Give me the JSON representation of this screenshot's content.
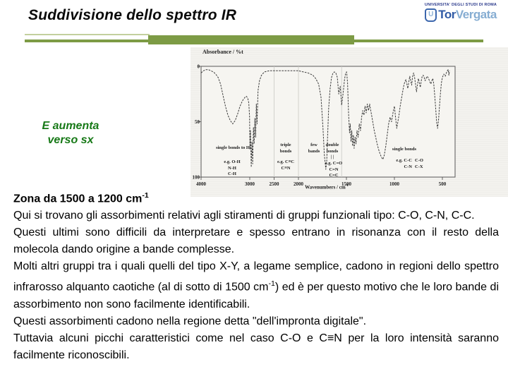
{
  "slide": {
    "title": "Suddivisione dello spettro IR"
  },
  "logo": {
    "university_line": "UNIVERSITA' DEGLI STUDI DI ROMA",
    "u_glyph": "U",
    "name_tor": "Tor",
    "name_vergata": "Vergata"
  },
  "note": {
    "line1": "E aumenta",
    "line2": "verso sx",
    "color": "#177917"
  },
  "colors": {
    "divider_olive": "#7d9b45",
    "divider_light_olive": "#c3d09e",
    "note_green": "#177917",
    "logo_navy": "#2b3a8c",
    "logo_blue": "#2f5aa5",
    "logo_light_blue": "#86add2",
    "chart_scan_background": "#f3f2ee"
  },
  "chart_data": {
    "type": "line",
    "ylabel": "Absorbance / %t",
    "xlabel": "Wavenumbers / cm",
    "xlabel_sup": "-1",
    "x_ticks": [
      4000,
      3000,
      2500,
      2000,
      1500,
      1000,
      500
    ],
    "y_ticks": [
      0,
      50,
      100
    ],
    "ylim": [
      0,
      100
    ],
    "axis_note": "x axis runs 4000 to 500 cm-1 left to right; scale expands 2x below 2000; y is 0 (top) to 100 (bottom); grid off except 3 light zone boundary lines",
    "zone_boundaries": [
      2500,
      2000,
      1550
    ],
    "zones": [
      {
        "lines": [
          "single bonds to H"
        ],
        "eg": [
          "e.g. O-H",
          "N-H",
          "C-H"
        ]
      },
      {
        "lines": [
          "triple",
          "bonds"
        ],
        "eg": [
          "e.g. C≡C",
          "C≡N"
        ]
      },
      {
        "lines": [
          "few",
          "bands"
        ],
        "eg": []
      },
      {
        "lines": [
          "double",
          "bonds",
          "| |"
        ],
        "eg": [
          "e.g. C=O",
          "C=N",
          "C=C"
        ]
      },
      {
        "lines": [
          "single bonds"
        ],
        "eg_col1": [
          "e.g. C-C",
          "C-N"
        ],
        "eg_col2": [
          "C-O",
          "C-X"
        ]
      }
    ],
    "series": [
      {
        "name": "IR transmittance-style trace (dashed scan)",
        "points": [
          [
            4000,
            6
          ],
          [
            3950,
            4
          ],
          [
            3900,
            3
          ],
          [
            3850,
            3
          ],
          [
            3800,
            4
          ],
          [
            3750,
            5
          ],
          [
            3700,
            7
          ],
          [
            3650,
            10
          ],
          [
            3600,
            16
          ],
          [
            3550,
            26
          ],
          [
            3500,
            36
          ],
          [
            3450,
            44
          ],
          [
            3400,
            49
          ],
          [
            3350,
            52
          ],
          [
            3300,
            49
          ],
          [
            3250,
            43
          ],
          [
            3200,
            36
          ],
          [
            3150,
            31
          ],
          [
            3100,
            28
          ],
          [
            3070,
            27
          ],
          [
            3040,
            29
          ],
          [
            3020,
            33
          ],
          [
            3005,
            45
          ],
          [
            2995,
            75
          ],
          [
            2985,
            58
          ],
          [
            2970,
            91
          ],
          [
            2955,
            68
          ],
          [
            2940,
            88
          ],
          [
            2925,
            55
          ],
          [
            2910,
            70
          ],
          [
            2895,
            47
          ],
          [
            2880,
            64
          ],
          [
            2865,
            34
          ],
          [
            2850,
            52
          ],
          [
            2830,
            22
          ],
          [
            2800,
            13
          ],
          [
            2760,
            8
          ],
          [
            2700,
            5
          ],
          [
            2600,
            4
          ],
          [
            2500,
            4
          ],
          [
            2400,
            4
          ],
          [
            2300,
            4
          ],
          [
            2200,
            4
          ],
          [
            2100,
            4
          ],
          [
            2000,
            4
          ],
          [
            1950,
            5
          ],
          [
            1900,
            6
          ],
          [
            1850,
            8
          ],
          [
            1820,
            11
          ],
          [
            1790,
            16
          ],
          [
            1765,
            28
          ],
          [
            1745,
            55
          ],
          [
            1730,
            80
          ],
          [
            1715,
            93
          ],
          [
            1705,
            85
          ],
          [
            1695,
            60
          ],
          [
            1685,
            38
          ],
          [
            1670,
            20
          ],
          [
            1655,
            10
          ],
          [
            1640,
            6
          ],
          [
            1625,
            5
          ],
          [
            1610,
            6
          ],
          [
            1595,
            10
          ],
          [
            1580,
            25
          ],
          [
            1565,
            18
          ],
          [
            1550,
            35
          ],
          [
            1535,
            25
          ],
          [
            1520,
            12
          ],
          [
            1508,
            6
          ],
          [
            1498,
            5
          ],
          [
            1488,
            15
          ],
          [
            1478,
            42
          ],
          [
            1468,
            60
          ],
          [
            1460,
            52
          ],
          [
            1452,
            68
          ],
          [
            1444,
            58
          ],
          [
            1436,
            72
          ],
          [
            1428,
            62
          ],
          [
            1420,
            74
          ],
          [
            1410,
            64
          ],
          [
            1400,
            70
          ],
          [
            1390,
            58
          ],
          [
            1378,
            64
          ],
          [
            1366,
            52
          ],
          [
            1354,
            58
          ],
          [
            1342,
            46
          ],
          [
            1330,
            40
          ],
          [
            1318,
            44
          ],
          [
            1306,
            36
          ],
          [
            1294,
            42
          ],
          [
            1282,
            34
          ],
          [
            1270,
            40
          ],
          [
            1258,
            34
          ],
          [
            1246,
            40
          ],
          [
            1234,
            46
          ],
          [
            1222,
            52
          ],
          [
            1210,
            58
          ],
          [
            1195,
            64
          ],
          [
            1180,
            70
          ],
          [
            1165,
            75
          ],
          [
            1150,
            79
          ],
          [
            1135,
            82
          ],
          [
            1120,
            84
          ],
          [
            1105,
            80
          ],
          [
            1090,
            72
          ],
          [
            1075,
            62
          ],
          [
            1060,
            52
          ],
          [
            1045,
            46
          ],
          [
            1030,
            50
          ],
          [
            1015,
            42
          ],
          [
            1000,
            36
          ],
          [
            988,
            46
          ],
          [
            976,
            56
          ],
          [
            964,
            50
          ],
          [
            952,
            44
          ],
          [
            940,
            36
          ],
          [
            928,
            30
          ],
          [
            916,
            24
          ],
          [
            904,
            18
          ],
          [
            892,
            14
          ],
          [
            880,
            12
          ],
          [
            870,
            16
          ],
          [
            860,
            20
          ],
          [
            850,
            14
          ],
          [
            840,
            9
          ],
          [
            830,
            13
          ],
          [
            820,
            17
          ],
          [
            810,
            9
          ],
          [
            800,
            6
          ],
          [
            790,
            10
          ],
          [
            780,
            16
          ],
          [
            770,
            23
          ],
          [
            760,
            17
          ],
          [
            750,
            11
          ],
          [
            740,
            15
          ],
          [
            730,
            19
          ],
          [
            720,
            13
          ],
          [
            710,
            9
          ],
          [
            700,
            8
          ],
          [
            690,
            10
          ],
          [
            680,
            13
          ],
          [
            670,
            11
          ],
          [
            660,
            9
          ],
          [
            650,
            10
          ],
          [
            640,
            12
          ],
          [
            630,
            14
          ],
          [
            620,
            16
          ],
          [
            610,
            13
          ],
          [
            600,
            11
          ],
          [
            590,
            16
          ],
          [
            580,
            26
          ],
          [
            570,
            38
          ],
          [
            560,
            50
          ],
          [
            550,
            56
          ],
          [
            540,
            48
          ],
          [
            530,
            36
          ],
          [
            520,
            24
          ],
          [
            510,
            15
          ],
          [
            500,
            10
          ],
          [
            485,
            7
          ],
          [
            470,
            9
          ],
          [
            455,
            5
          ],
          [
            440,
            3
          ],
          [
            432,
            8
          ],
          [
            425,
            4
          ]
        ]
      }
    ]
  },
  "body": {
    "heading": {
      "text": "Zona da 1500 a 1200 cm",
      "sup": "-1"
    },
    "p1": "Qui si trovano gli assorbimenti relativi agli stiramenti di gruppi funzionali tipo: C-O, C-N, C-C.",
    "p2": "Questi ultimi sono difficili da interpretare e spesso entrano in risonanza con il resto della molecola dando origine a bande complesse.",
    "p3": {
      "before": "Molti altri gruppi tra i quali quelli del tipo X-Y, a legame semplice, cadono in regioni dello spettro infrarosso alquanto caotiche (al di sotto di 1500 cm",
      "sup": "-1",
      "after": ") ed è per questo motivo che le loro bande di assorbimento non sono facilmente identificabili."
    },
    "p4": "Questi assorbimenti cadono nella regione detta \"dell'impronta digitale\".",
    "p5": "Tuttavia alcuni picchi caratteristici come nel caso C-O e C≡N per la loro intensità saranno facilmente riconoscibili."
  }
}
